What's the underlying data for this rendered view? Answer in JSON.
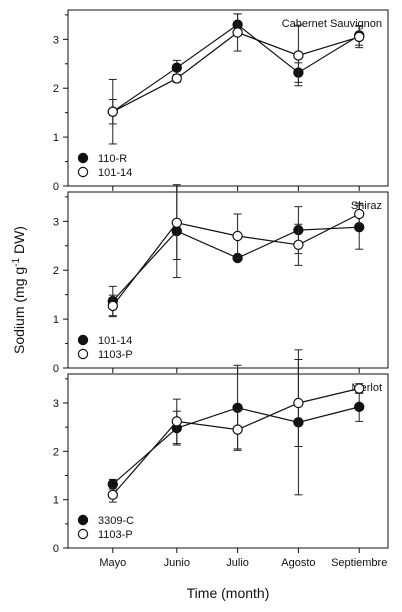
{
  "figure": {
    "ylabel_main": "Sodium (mg g",
    "ylabel_sup": "-1",
    "ylabel_tail": " DW)",
    "xlabel": "Time (month)"
  },
  "chart_data": [
    {
      "type": "scatter",
      "title": "Cabernet Sauvignon",
      "categories": [
        "Mayo",
        "Junio",
        "Julio",
        "Agosto",
        "Septiembre"
      ],
      "ylim": [
        0,
        3.6
      ],
      "yticks": [
        0,
        1,
        2,
        3
      ],
      "legend_position": "bottom-left",
      "series": [
        {
          "name": "110-R",
          "marker": "filled",
          "values": [
            1.52,
            2.42,
            3.3,
            2.32,
            3.08
          ],
          "errors": [
            0.25,
            0.15,
            0.22,
            0.2,
            0.2
          ]
        },
        {
          "name": "101-14",
          "marker": "open",
          "values": [
            1.52,
            2.2,
            3.14,
            2.67,
            3.05
          ],
          "errors": [
            0.66,
            0.08,
            0.38,
            0.62,
            0.22
          ]
        }
      ]
    },
    {
      "type": "scatter",
      "title": "Shiraz",
      "categories": [
        "Mayo",
        "Junio",
        "Julio",
        "Agosto",
        "Septiembre"
      ],
      "ylim": [
        0,
        3.6
      ],
      "yticks": [
        0,
        1,
        2,
        3
      ],
      "legend_position": "bottom-left",
      "series": [
        {
          "name": "101-14",
          "marker": "filled",
          "values": [
            1.37,
            2.8,
            2.25,
            2.82,
            2.88
          ],
          "errors": [
            0.3,
            0.95,
            0.0,
            0.48,
            0.45
          ]
        },
        {
          "name": "1103-P",
          "marker": "open",
          "values": [
            1.27,
            2.97,
            2.7,
            2.52,
            3.15
          ],
          "errors": [
            0.22,
            0.75,
            0.45,
            0.42,
            0.22
          ]
        }
      ]
    },
    {
      "type": "scatter",
      "title": "Merlot",
      "categories": [
        "Mayo",
        "Junio",
        "Julio",
        "Agosto",
        "Septiembre"
      ],
      "ylim": [
        0,
        3.6
      ],
      "yticks": [
        0,
        1,
        2,
        3
      ],
      "legend_position": "bottom-left",
      "series": [
        {
          "name": "3309-C",
          "marker": "filled",
          "values": [
            1.32,
            2.48,
            2.9,
            2.6,
            2.92
          ],
          "errors": [
            0.1,
            0.35,
            0.88,
            1.5,
            0.3
          ]
        },
        {
          "name": "1103-P",
          "marker": "open",
          "values": [
            1.1,
            2.62,
            2.45,
            3.0,
            3.3
          ],
          "errors": [
            0.15,
            0.46,
            0.4,
            0.9,
            0.1
          ]
        }
      ]
    }
  ]
}
